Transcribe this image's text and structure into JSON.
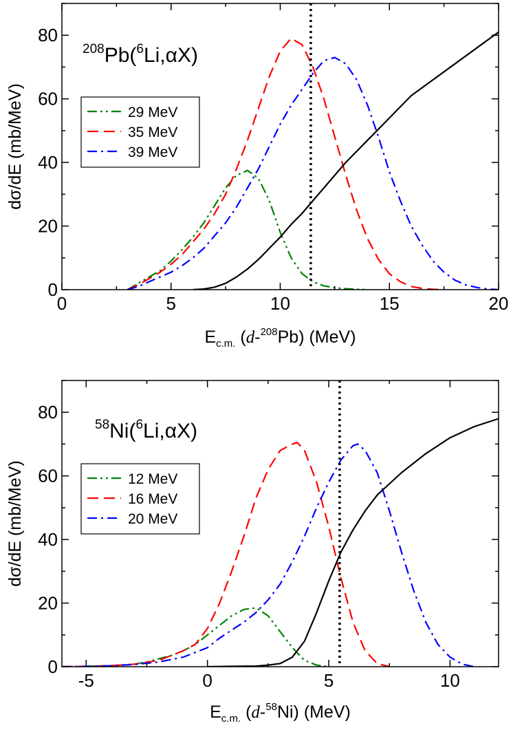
{
  "chart_data": [
    {
      "type": "line",
      "annotation": {
        "prefix_sup": "208",
        "element": "Pb(",
        "mid_sup": "6",
        "rest": "Li,αX)"
      },
      "ylabel": "dσ/dE (mb/MeV)",
      "xlabel": {
        "main": "E",
        "sub": "c.m.",
        "rest_open": " (",
        "italic": "d",
        "dash": "-",
        "sup": "208",
        "element": "Pb) (MeV)"
      },
      "xlim": [
        0,
        20
      ],
      "ylim": [
        0,
        90
      ],
      "xticks": [
        0,
        5,
        10,
        15,
        20
      ],
      "yticks": [
        0,
        20,
        40,
        60,
        80
      ],
      "vline_x": 11.4,
      "legend_position": "upper-left",
      "series": [
        {
          "name": "29 MeV",
          "color": "#008000",
          "dash": "dashdotdot",
          "x": [
            3,
            3.5,
            4,
            4.5,
            5,
            5.5,
            6,
            6.5,
            7,
            7.5,
            8,
            8.5,
            9,
            9.5,
            10,
            10.5,
            11,
            11.5,
            12,
            12.5,
            13,
            13.5,
            14
          ],
          "y": [
            0,
            2,
            4,
            6,
            9,
            12.5,
            16.5,
            21,
            26.5,
            32,
            36,
            37.5,
            35,
            28,
            18,
            10,
            5,
            2.5,
            1.2,
            0.6,
            0.3,
            0.1,
            0
          ]
        },
        {
          "name": "35 MeV",
          "color": "#ff0000",
          "dash": "dashed",
          "x": [
            3,
            3.5,
            4,
            4.5,
            5,
            5.5,
            6,
            6.5,
            7,
            7.5,
            8,
            8.5,
            9,
            9.5,
            10,
            10.5,
            11,
            11.5,
            12,
            12.5,
            13,
            13.5,
            14,
            14.5,
            15,
            15.5,
            16,
            16.5,
            17,
            17.5
          ],
          "y": [
            0,
            1.5,
            3.5,
            5.5,
            8,
            11,
            15,
            19,
            24,
            30,
            38,
            47,
            57,
            67,
            75,
            79,
            77,
            70,
            60,
            48,
            36,
            25,
            16,
            9.5,
            5,
            2.5,
            1,
            0.4,
            0.1,
            0
          ]
        },
        {
          "name": "39 MeV",
          "color": "#0000ff",
          "dash": "dashdot",
          "x": [
            3,
            3.5,
            4,
            4.5,
            5,
            5.5,
            6,
            6.5,
            7,
            7.5,
            8,
            8.5,
            9,
            9.5,
            10,
            10.5,
            11,
            11.5,
            12,
            12.5,
            13,
            13.5,
            14,
            14.5,
            15,
            15.5,
            16,
            16.5,
            17,
            17.5,
            18,
            18.5,
            19,
            19.5,
            20
          ],
          "y": [
            0,
            1,
            2.5,
            4,
            5.5,
            7.5,
            10,
            13,
            17,
            21,
            26,
            32,
            38,
            45,
            52,
            58,
            63,
            68,
            72,
            73,
            71,
            66,
            58,
            48,
            37,
            28,
            20,
            14,
            9,
            5.5,
            3,
            1.5,
            0.7,
            0.2,
            0
          ]
        },
        {
          "name": "",
          "color": "#000000",
          "dash": "solid",
          "x": [
            6,
            6.5,
            7,
            7.5,
            8,
            8.5,
            9,
            9.5,
            10,
            10.5,
            11,
            11.5,
            12,
            12.5,
            13,
            14,
            15,
            16,
            17,
            18,
            19,
            20
          ],
          "y": [
            0,
            0.2,
            0.8,
            2,
            4,
            6.5,
            9.5,
            13,
            16.5,
            20.5,
            24,
            28,
            32,
            36,
            40,
            47,
            54,
            61,
            66,
            71,
            76,
            81
          ]
        }
      ]
    },
    {
      "type": "line",
      "annotation": {
        "prefix_sup": "58",
        "element": "Ni(",
        "mid_sup": "6",
        "rest": "Li,αX)"
      },
      "ylabel": "dσ/dE (mb/MeV)",
      "xlabel": {
        "main": "E",
        "sub": "c.m.",
        "rest_open": " (",
        "italic": "d",
        "dash": "-",
        "sup": "58",
        "element": "Ni) (MeV)"
      },
      "xlim": [
        -6,
        12
      ],
      "ylim": [
        0,
        90
      ],
      "xticks": [
        -5,
        0,
        5,
        10
      ],
      "yticks": [
        0,
        20,
        40,
        60,
        80
      ],
      "vline_x": 5.45,
      "legend_position": "upper-left",
      "series": [
        {
          "name": "12 MeV",
          "color": "#008000",
          "dash": "dashdotdot",
          "x": [
            -6,
            -5,
            -4,
            -3,
            -2.5,
            -2,
            -1.5,
            -1,
            -0.5,
            0,
            0.5,
            1,
            1.5,
            2,
            2.5,
            3,
            3.5,
            4,
            4.5,
            5
          ],
          "y": [
            0,
            0.1,
            0.3,
            0.8,
            1.5,
            2.5,
            3.5,
            5,
            7,
            10,
            13,
            16,
            18,
            18.5,
            16,
            11,
            6,
            2,
            0.5,
            0
          ]
        },
        {
          "name": "16 MeV",
          "color": "#ff0000",
          "dash": "dashed",
          "x": [
            -6,
            -5,
            -4,
            -3,
            -2,
            -1.5,
            -1,
            -0.5,
            0,
            0.5,
            1,
            1.5,
            2,
            2.5,
            3,
            3.5,
            3.7,
            4,
            4.5,
            5,
            5.5,
            6,
            6.5,
            7,
            7.5
          ],
          "y": [
            0,
            0.1,
            0.3,
            0.8,
            2,
            3.5,
            5,
            7,
            12,
            20,
            30,
            41,
            53,
            62,
            68,
            70,
            70.5,
            68,
            58,
            44,
            28,
            14,
            5,
            1,
            0
          ]
        },
        {
          "name": "20 MeV",
          "color": "#0000ff",
          "dash": "dashdot",
          "x": [
            -6,
            -5,
            -4,
            -3,
            -2,
            -1,
            0,
            0.5,
            1,
            1.5,
            2,
            2.5,
            3,
            3.5,
            4,
            4.5,
            5,
            5.5,
            6,
            6.2,
            6.5,
            7,
            7.5,
            8,
            8.5,
            9,
            9.5,
            10,
            10.5,
            11
          ],
          "y": [
            0,
            0.1,
            0.3,
            0.7,
            1.5,
            3,
            6,
            9,
            11.5,
            14,
            17,
            21,
            26,
            33,
            41,
            50,
            58,
            65,
            69.5,
            70,
            68,
            61,
            49,
            36,
            24,
            14,
            7,
            3,
            0.8,
            0
          ]
        },
        {
          "name": "",
          "color": "#000000",
          "dash": "solid",
          "x": [
            0,
            1,
            2,
            2.5,
            3,
            3.5,
            4,
            4.5,
            5,
            5.5,
            6,
            6.5,
            7,
            8,
            9,
            10,
            11,
            12
          ],
          "y": [
            0,
            0.1,
            0.2,
            0.5,
            1,
            3,
            8,
            17,
            27,
            36,
            43,
            49,
            54,
            61,
            67,
            72,
            75.5,
            78
          ]
        }
      ]
    }
  ]
}
